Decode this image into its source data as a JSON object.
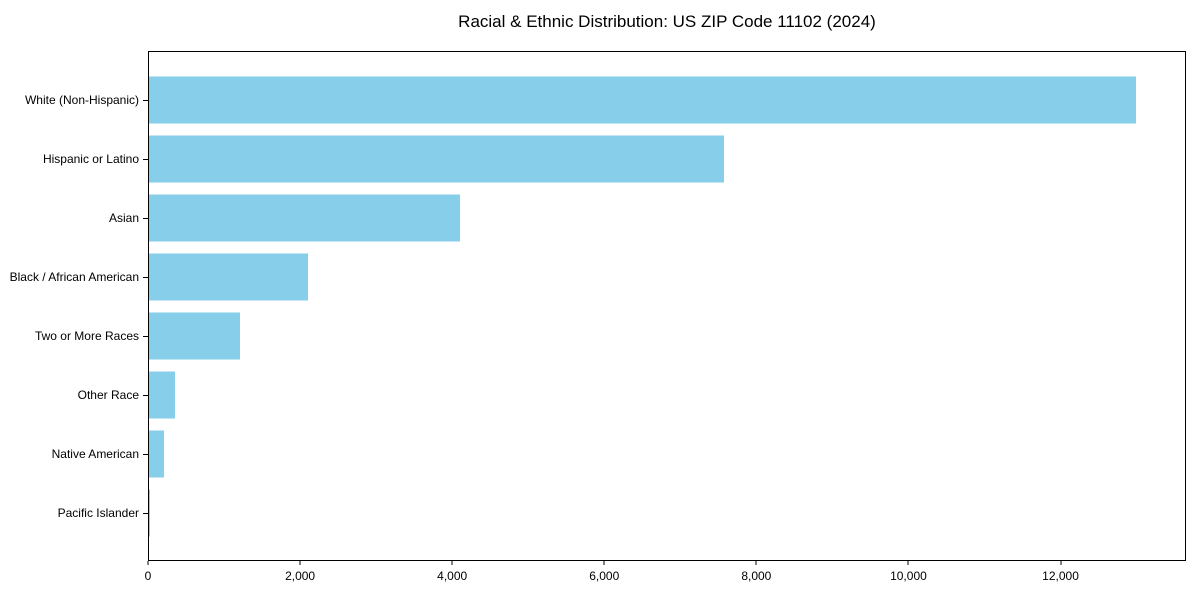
{
  "chart_data": {
    "type": "bar",
    "orientation": "horizontal",
    "title": "Racial & Ethnic Distribution: US ZIP Code 11102 (2024)",
    "categories": [
      "White (Non-Hispanic)",
      "Hispanic or Latino",
      "Asian",
      "Black / African American",
      "Two or More Races",
      "Other Race",
      "Native American",
      "Pacific Islander"
    ],
    "values": [
      13000,
      7570,
      4100,
      2100,
      1200,
      340,
      200,
      10
    ],
    "xlabel": "",
    "ylabel": "",
    "xlim": [
      0,
      13650
    ],
    "x_ticks": [
      0,
      2000,
      4000,
      6000,
      8000,
      10000,
      12000
    ],
    "x_tick_labels": [
      "0",
      "2,000",
      "4,000",
      "6,000",
      "8,000",
      "10,000",
      "12,000"
    ],
    "grid": false,
    "legend": null,
    "bar_color": "#87CEEB",
    "background_color": "#ffffff",
    "text_color": "#000000",
    "spine_color": "#000000"
  }
}
